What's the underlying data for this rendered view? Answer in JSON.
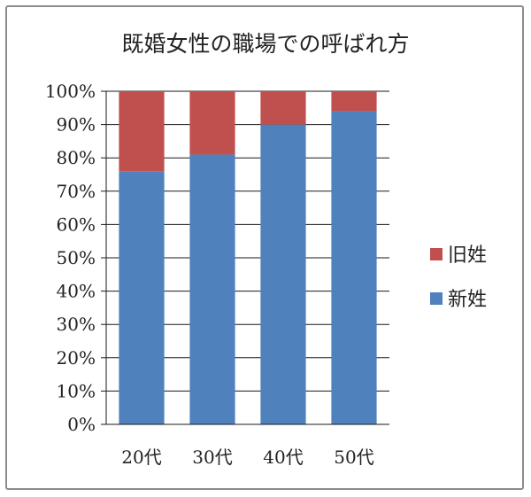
{
  "chart_data": {
    "type": "bar",
    "stacked": true,
    "title": "既婚女性の職場での呼ばれ方",
    "categories": [
      "20代",
      "30代",
      "40代",
      "50代"
    ],
    "series": [
      {
        "name": "新姓",
        "values": [
          76,
          81,
          90,
          94
        ],
        "color": "#4f81bd"
      },
      {
        "name": "旧姓",
        "values": [
          24,
          19,
          10,
          6
        ],
        "color": "#c0504d"
      }
    ],
    "ylim": [
      0,
      100
    ],
    "yticks": [
      "0%",
      "10%",
      "20%",
      "30%",
      "40%",
      "50%",
      "60%",
      "70%",
      "80%",
      "90%",
      "100%"
    ],
    "legend": [
      "旧姓",
      "新姓"
    ],
    "legend_position": "right",
    "grid": true
  }
}
